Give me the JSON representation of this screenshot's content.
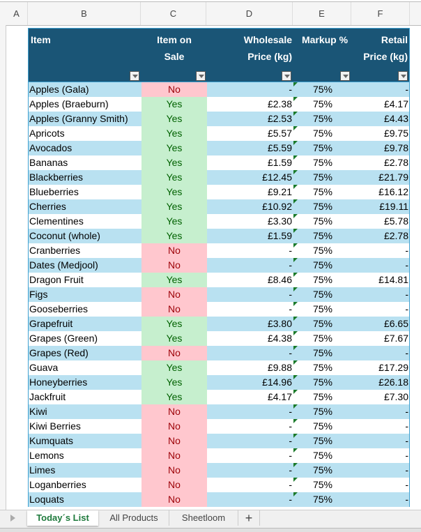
{
  "columns": [
    "A",
    "B",
    "C",
    "D",
    "E",
    "F"
  ],
  "header": {
    "item": "Item",
    "sale": "Item on Sale",
    "wholesale": "Wholesale Price (kg)",
    "markup": "Markup %",
    "retail": "Retail Price (kg)"
  },
  "colors": {
    "header_bg": "#1a5576",
    "row_stripe": "#b9e1f1",
    "yes_bg": "#c6efce",
    "no_bg": "#ffc7ce",
    "active_tab": "#1e7a3c"
  },
  "rows": [
    {
      "item": "Apples (Gala)",
      "sale": "No",
      "wholesale": "-",
      "markup": "75%",
      "retail": "-"
    },
    {
      "item": "Apples (Braeburn)",
      "sale": "Yes",
      "wholesale": "£2.38",
      "markup": "75%",
      "retail": "£4.17"
    },
    {
      "item": "Apples (Granny Smith)",
      "sale": "Yes",
      "wholesale": "£2.53",
      "markup": "75%",
      "retail": "£4.43"
    },
    {
      "item": "Apricots",
      "sale": "Yes",
      "wholesale": "£5.57",
      "markup": "75%",
      "retail": "£9.75"
    },
    {
      "item": "Avocados",
      "sale": "Yes",
      "wholesale": "£5.59",
      "markup": "75%",
      "retail": "£9.78"
    },
    {
      "item": "Bananas",
      "sale": "Yes",
      "wholesale": "£1.59",
      "markup": "75%",
      "retail": "£2.78"
    },
    {
      "item": "Blackberries",
      "sale": "Yes",
      "wholesale": "£12.45",
      "markup": "75%",
      "retail": "£21.79"
    },
    {
      "item": "Blueberries",
      "sale": "Yes",
      "wholesale": "£9.21",
      "markup": "75%",
      "retail": "£16.12"
    },
    {
      "item": "Cherries",
      "sale": "Yes",
      "wholesale": "£10.92",
      "markup": "75%",
      "retail": "£19.11"
    },
    {
      "item": "Clementines",
      "sale": "Yes",
      "wholesale": "£3.30",
      "markup": "75%",
      "retail": "£5.78"
    },
    {
      "item": "Coconut (whole)",
      "sale": "Yes",
      "wholesale": "£1.59",
      "markup": "75%",
      "retail": "£2.78"
    },
    {
      "item": "Cranberries",
      "sale": "No",
      "wholesale": "-",
      "markup": "75%",
      "retail": "-"
    },
    {
      "item": "Dates (Medjool)",
      "sale": "No",
      "wholesale": "-",
      "markup": "75%",
      "retail": "-"
    },
    {
      "item": "Dragon Fruit",
      "sale": "Yes",
      "wholesale": "£8.46",
      "markup": "75%",
      "retail": "£14.81"
    },
    {
      "item": "Figs",
      "sale": "No",
      "wholesale": "-",
      "markup": "75%",
      "retail": "-"
    },
    {
      "item": "Gooseberries",
      "sale": "No",
      "wholesale": "-",
      "markup": "75%",
      "retail": "-"
    },
    {
      "item": "Grapefruit",
      "sale": "Yes",
      "wholesale": "£3.80",
      "markup": "75%",
      "retail": "£6.65"
    },
    {
      "item": "Grapes (Green)",
      "sale": "Yes",
      "wholesale": "£4.38",
      "markup": "75%",
      "retail": "£7.67"
    },
    {
      "item": "Grapes (Red)",
      "sale": "No",
      "wholesale": "-",
      "markup": "75%",
      "retail": "-"
    },
    {
      "item": "Guava",
      "sale": "Yes",
      "wholesale": "£9.88",
      "markup": "75%",
      "retail": "£17.29"
    },
    {
      "item": "Honeyberries",
      "sale": "Yes",
      "wholesale": "£14.96",
      "markup": "75%",
      "retail": "£26.18"
    },
    {
      "item": "Jackfruit",
      "sale": "Yes",
      "wholesale": "£4.17",
      "markup": "75%",
      "retail": "£7.30"
    },
    {
      "item": "Kiwi",
      "sale": "No",
      "wholesale": "-",
      "markup": "75%",
      "retail": "-"
    },
    {
      "item": "Kiwi Berries",
      "sale": "No",
      "wholesale": "-",
      "markup": "75%",
      "retail": "-"
    },
    {
      "item": "Kumquats",
      "sale": "No",
      "wholesale": "-",
      "markup": "75%",
      "retail": "-"
    },
    {
      "item": "Lemons",
      "sale": "No",
      "wholesale": "-",
      "markup": "75%",
      "retail": "-"
    },
    {
      "item": "Limes",
      "sale": "No",
      "wholesale": "-",
      "markup": "75%",
      "retail": "-"
    },
    {
      "item": "Loganberries",
      "sale": "No",
      "wholesale": "-",
      "markup": "75%",
      "retail": "-"
    },
    {
      "item": "Loquats",
      "sale": "No",
      "wholesale": "-",
      "markup": "75%",
      "retail": "-"
    }
  ],
  "tabs": [
    "Today´s List",
    "All Products",
    "Sheetloom"
  ],
  "add_sheet": "+"
}
